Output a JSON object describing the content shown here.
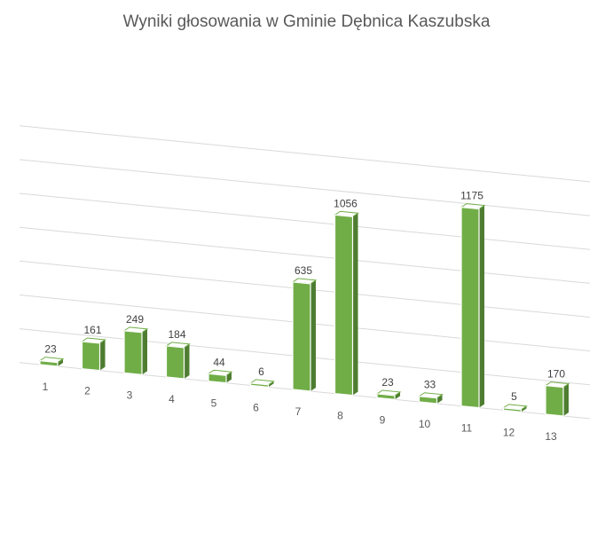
{
  "chart_data": {
    "type": "bar",
    "title": "Wyniki głosowania w Gminie Dębnica Kaszubska",
    "xlabel": "",
    "ylabel": "",
    "categories": [
      "1",
      "2",
      "3",
      "4",
      "5",
      "6",
      "7",
      "8",
      "9",
      "10",
      "11",
      "12",
      "13"
    ],
    "values": [
      23,
      161,
      249,
      184,
      44,
      6,
      635,
      1056,
      23,
      33,
      1175,
      5,
      170
    ],
    "ylim": [
      0,
      1400
    ],
    "grid": true,
    "legend": "none",
    "colors": {
      "bar_front": "#70ad47",
      "bar_side": "#4e7d31",
      "bar_top": "#ffffff"
    }
  }
}
